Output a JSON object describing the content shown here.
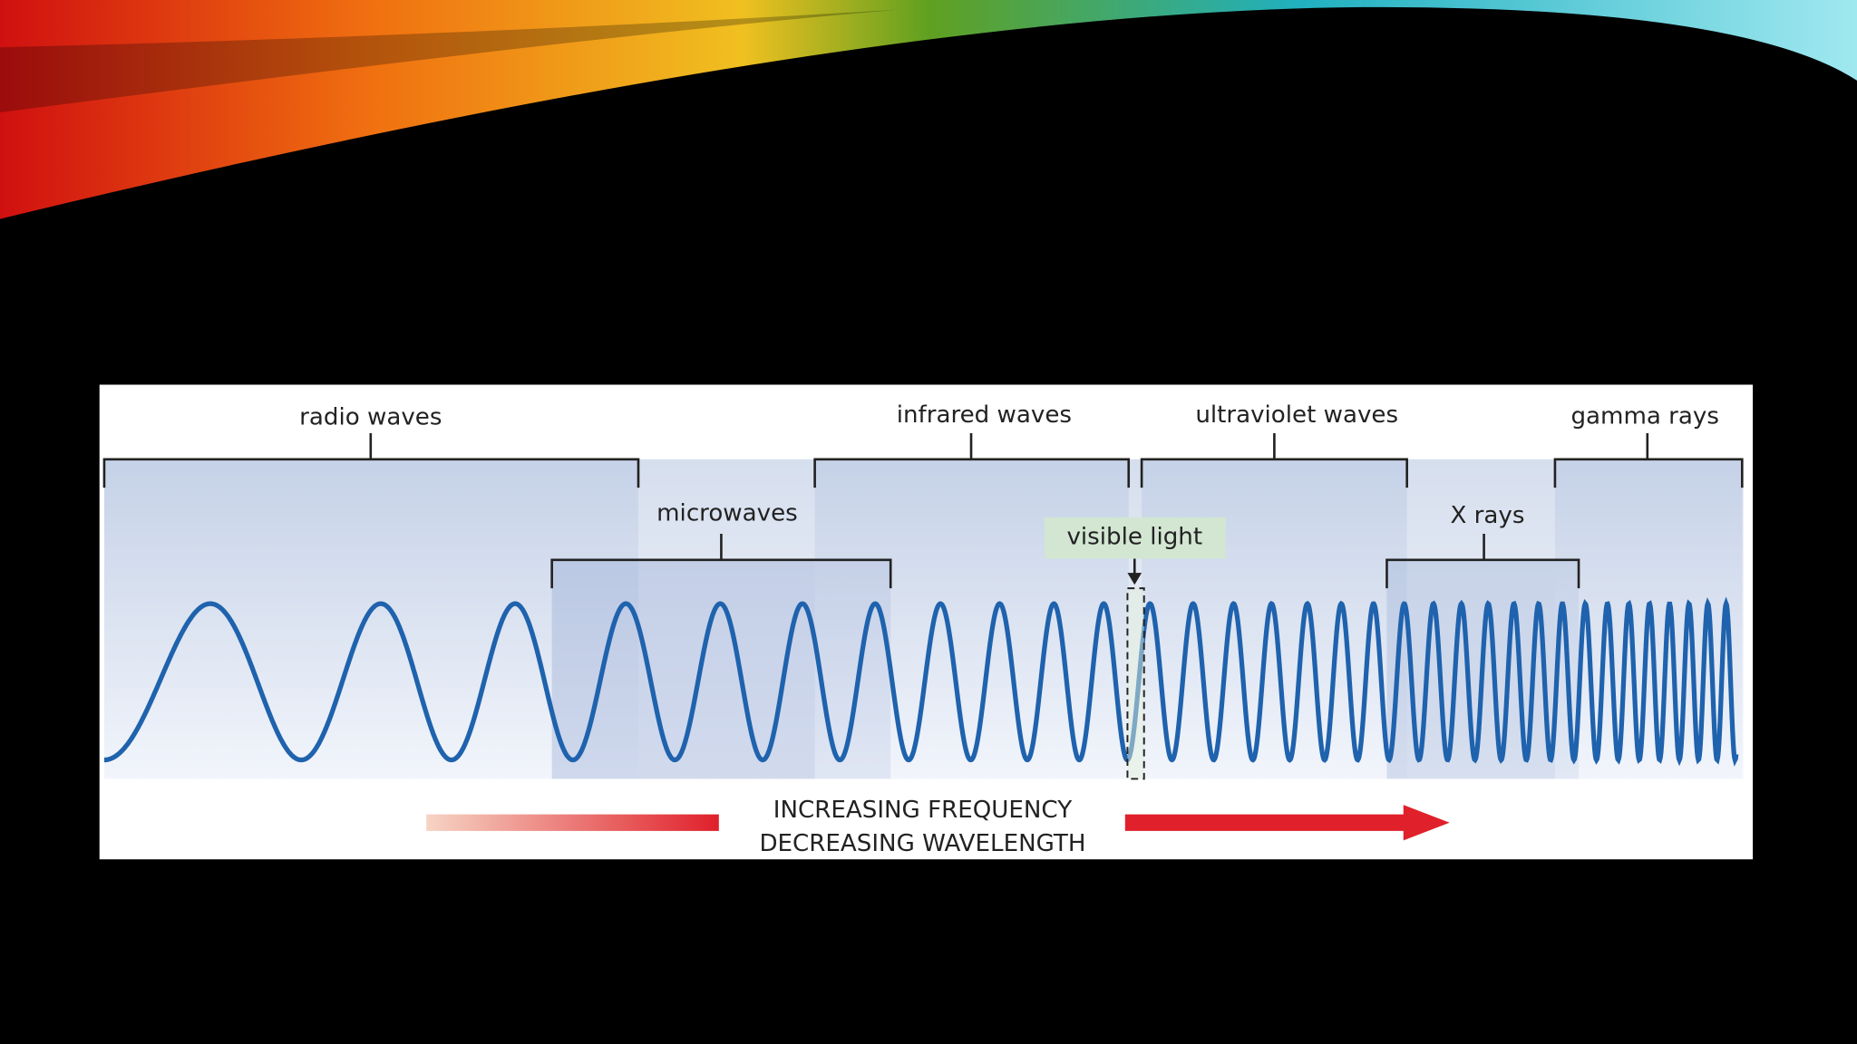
{
  "diagram": {
    "bands": [
      {
        "label": "radio waves"
      },
      {
        "label": "microwaves"
      },
      {
        "label": "infrared waves"
      },
      {
        "label": "visible light"
      },
      {
        "label": "ultraviolet waves"
      },
      {
        "label": "X rays"
      },
      {
        "label": "gamma rays"
      }
    ],
    "arrow": {
      "line1": "INCREASING FREQUENCY",
      "line2": "DECREASING WAVELENGTH"
    }
  }
}
